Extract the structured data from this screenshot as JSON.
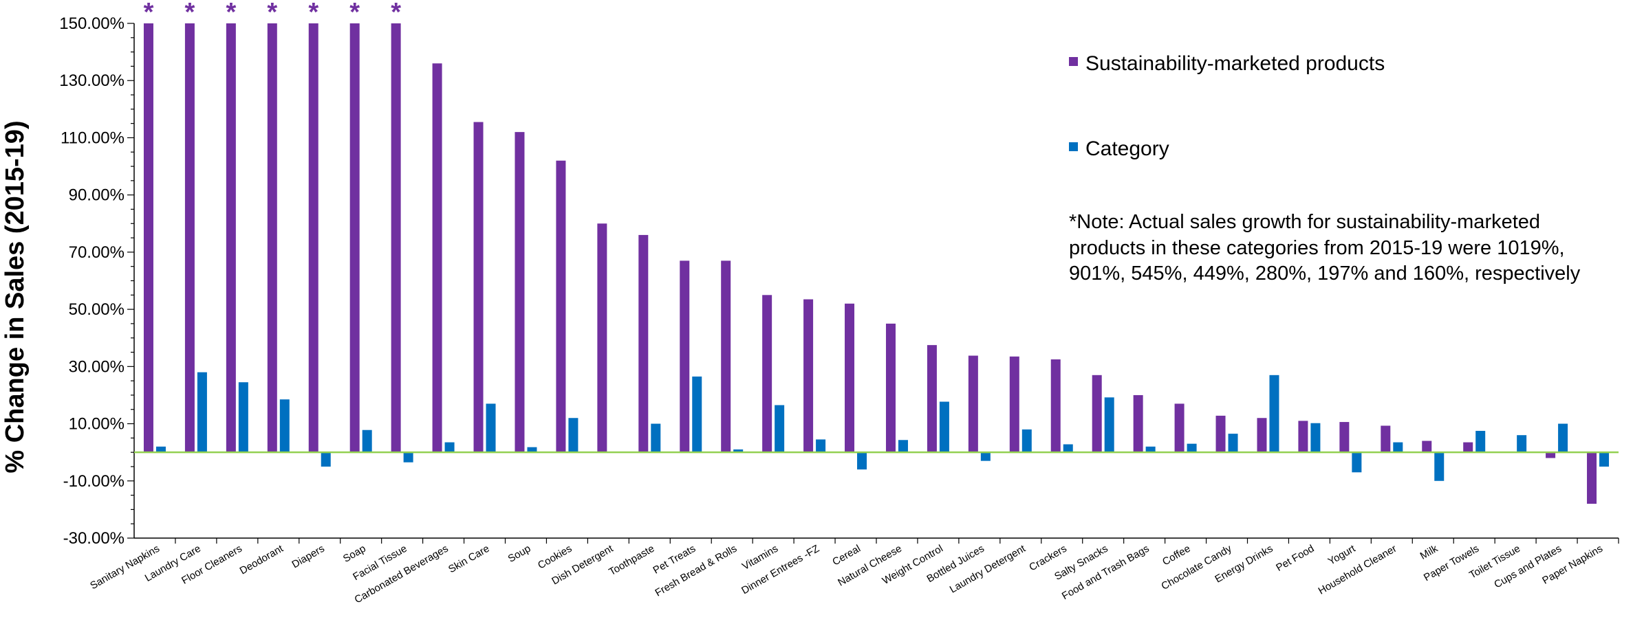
{
  "chart_data": {
    "type": "bar",
    "ylabel": "% Change in Sales (2015-19)",
    "ylim": [
      -30,
      150
    ],
    "yticks": [
      -30,
      -10,
      10,
      30,
      50,
      70,
      90,
      110,
      130,
      150
    ],
    "ytick_labels": [
      "-30.00%",
      "-10.00%",
      "10.00%",
      "30.00%",
      "50.00%",
      "70.00%",
      "90.00%",
      "110.00%",
      "130.00%",
      "150.00%"
    ],
    "reference_line": 0,
    "categories": [
      "Sanitary Napkins",
      "Laundry Care",
      "Floor Cleaners",
      "Deodorant",
      "Diapers",
      "Soap",
      "Facial Tissue",
      "Carbonated Beverages",
      "Skin Care",
      "Soup",
      "Cookies",
      "Dish Detergent",
      "Toothpaste",
      "Pet Treats",
      "Fresh Bread & Rolls",
      "Vitamins",
      "Dinner Entrees -FZ",
      "Cereal",
      "Natural Cheese",
      "Weight Control",
      "Bottled Juices",
      "Laundry Detergent",
      "Crackers",
      "Salty Snacks",
      "Food and Trash Bags",
      "Coffee",
      "Chocolate Candy",
      "Energy Drinks",
      "Pet Food",
      "Yogurt",
      "Household Cleaner",
      "Milk",
      "Paper Towels",
      "Toilet Tissue",
      "Cups and Plates",
      "Paper Napkins"
    ],
    "series": [
      {
        "name": "Sustainability-marketed products",
        "color": "#7030a0",
        "values": [
          150,
          150,
          150,
          150,
          150,
          150,
          150,
          136,
          115.5,
          112,
          102,
          80,
          76,
          67,
          67,
          55,
          53.5,
          52,
          45,
          37.5,
          33.8,
          33.5,
          32.5,
          27,
          20,
          17,
          12.8,
          12,
          11,
          10.6,
          9.3,
          4,
          3.5,
          0,
          -2,
          -18
        ]
      },
      {
        "name": "Category",
        "color": "#0070c0",
        "values": [
          2,
          28,
          24.5,
          18.5,
          -5,
          7.8,
          -3.5,
          3.5,
          17,
          1.8,
          12,
          0,
          10,
          26.5,
          1,
          16.5,
          4.5,
          -6,
          4.3,
          17.7,
          -3,
          8,
          2.8,
          19.2,
          2,
          3,
          6.5,
          27,
          10.2,
          -7,
          3.5,
          -10,
          7.5,
          6,
          10,
          -5
        ]
      }
    ],
    "starred": [
      "Sanitary Napkins",
      "Laundry Care",
      "Floor Cleaners",
      "Deodorant",
      "Diapers",
      "Soap",
      "Facial Tissue"
    ],
    "star_symbol": "*",
    "star_color": "#7030a0",
    "reference_line_color": "#92d050",
    "legend_position": "top-right",
    "grid": false
  },
  "note": {
    "lines": [
      "*Note: Actual sales growth for sustainability-marketed",
      "products in these categories from 2015-19 were 1019%,",
      "901%, 545%, 449%, 280%, 197% and 160%, respectively"
    ]
  }
}
